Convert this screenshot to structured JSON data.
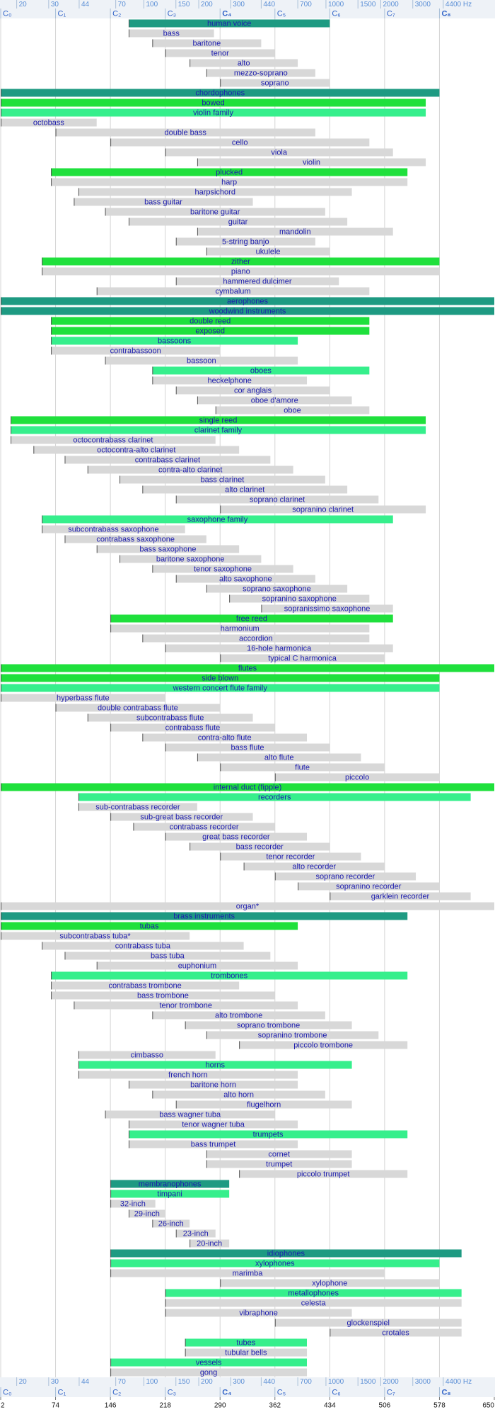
{
  "chart_data": {
    "type": "range_bar",
    "xlim": [
      2,
      650
    ],
    "xticks": [
      2,
      74,
      146,
      218,
      290,
      362,
      434,
      506,
      578,
      650
    ],
    "hz_ticks": [
      {
        "value": 23,
        "label": "20"
      },
      {
        "value": 65,
        "label": "30"
      },
      {
        "value": 105,
        "label": "44"
      },
      {
        "value": 153,
        "label": "70"
      },
      {
        "value": 190,
        "label": "100"
      },
      {
        "value": 232,
        "label": "150"
      },
      {
        "value": 262,
        "label": "200"
      },
      {
        "value": 304,
        "label": "300"
      },
      {
        "value": 344,
        "label": "440"
      },
      {
        "value": 392,
        "label": "700"
      },
      {
        "value": 429,
        "label": "1000"
      },
      {
        "value": 471,
        "label": "1500"
      },
      {
        "value": 501,
        "label": "2000"
      },
      {
        "value": 543,
        "label": "3000"
      },
      {
        "value": 583,
        "label": "4400 Hz"
      }
    ],
    "note_ticks": [
      {
        "value": 2,
        "label": "C₀"
      },
      {
        "value": 74,
        "label": "C₁"
      },
      {
        "value": 146,
        "label": "C₂"
      },
      {
        "value": 218,
        "label": "C₃"
      },
      {
        "value": 290,
        "label": "C₄",
        "bold": true
      },
      {
        "value": 362,
        "label": "C₅"
      },
      {
        "value": 434,
        "label": "C₆"
      },
      {
        "value": 506,
        "label": "C₇"
      },
      {
        "value": 578,
        "label": "C₈",
        "bold": true
      }
    ],
    "grid": true,
    "categories": [
      "human voice",
      "bass",
      "baritone",
      "tenor",
      "alto",
      "mezzo-soprano",
      "soprano",
      "chordophones",
      "bowed",
      "violin family",
      "octobass",
      "double bass",
      "cello",
      "viola",
      "violin",
      "plucked",
      "harp",
      "harpsichord",
      "bass guitar",
      "baritone guitar",
      "guitar",
      "mandolin",
      "5-string banjo",
      "ukulele",
      "zither",
      "piano",
      "hammered dulcimer",
      "cymbalum",
      "aerophones",
      "woodwind instruments",
      "double reed",
      "exposed",
      "bassoons",
      "contrabassoon",
      "bassoon",
      "oboes",
      "heckelphone",
      "cor anglais",
      "oboe d'amore",
      "oboe",
      "single reed",
      "clarinet family",
      "octocontrabass clarinet",
      "octocontra-alto clarinet",
      "contrabass clarinet",
      "contra-alto clarinet",
      "bass clarinet",
      "alto clarinet",
      "soprano clarinet",
      "sopranino clarinet",
      "saxophone family",
      "subcontrabass saxophone",
      "contrabass saxophone",
      "bass saxophone",
      "baritone saxophone",
      "tenor saxophone",
      "alto saxophone",
      "soprano saxophone",
      "sopranino saxophone",
      "sopranissimo saxophone",
      "free reed",
      "harmonium",
      "accordion",
      "16-hole harmonica",
      "typical C harmonica",
      "flutes",
      "side blown",
      "western concert flute family",
      "hyperbass flute",
      "double contrabass flute",
      "subcontrabass flute",
      "contrabass flute",
      "contra-alto flute",
      "bass flute",
      "alto flute",
      "flute",
      "piccolo",
      "internal duct (fipple)",
      "recorders",
      "sub-contrabass recorder",
      "sub-great bass recorder",
      "contrabass recorder",
      "great bass recorder",
      "bass recorder",
      "tenor recorder",
      "alto recorder",
      "soprano recorder",
      "sopranino recorder",
      "garklein recorder",
      "organ*",
      "brass instruments",
      "tubas",
      "subcontrabass tuba*",
      "contrabass tuba",
      "bass tuba",
      "euphonium",
      "trombones",
      "contrabass trombone",
      "bass trombone",
      "tenor trombone",
      "alto trombone",
      "soprano trombone",
      "sopranino trombone",
      "piccolo trombone",
      "cimbasso",
      "horns",
      "french horn",
      "baritone horn",
      "alto horn",
      "flugelhorn",
      "bass wagner tuba",
      "tenor wagner tuba",
      "trumpets",
      "bass trumpet",
      "cornet",
      "trumpet",
      "piccolo trumpet",
      "membranophones",
      "timpani",
      "32-inch",
      "29-inch",
      "26-inch",
      "23-inch",
      "20-inch",
      "idiophones",
      "xylophones",
      "marimba",
      "xylophone",
      "metallophones",
      "celesta",
      "vibraphone",
      "glockenspiel",
      "crotales",
      "tubes",
      "tubular bells",
      "vessels",
      "gong"
    ],
    "starts": [
      170,
      170,
      201,
      218,
      250,
      272,
      290,
      2,
      2,
      2,
      2,
      74,
      146,
      218,
      260,
      68,
      68,
      104,
      98,
      139,
      170,
      260,
      232,
      272,
      56,
      56,
      232,
      128,
      2,
      2,
      68,
      68,
      68,
      68,
      139,
      201,
      201,
      232,
      260,
      284,
      15,
      15,
      15,
      45,
      86,
      116,
      158,
      188,
      232,
      290,
      56,
      56,
      86,
      128,
      158,
      201,
      232,
      272,
      302,
      344,
      146,
      146,
      188,
      218,
      290,
      2,
      2,
      2,
      2,
      74,
      116,
      146,
      188,
      218,
      260,
      290,
      362,
      2,
      104,
      104,
      146,
      176,
      218,
      250,
      290,
      321,
      362,
      392,
      434,
      2,
      2,
      2,
      2,
      56,
      86,
      128,
      68,
      68,
      68,
      98,
      201,
      244,
      272,
      315,
      104,
      104,
      104,
      170,
      201,
      232,
      139,
      170,
      170,
      170,
      272,
      272,
      315,
      146,
      146,
      146,
      170,
      201,
      232,
      250,
      146,
      146,
      146,
      290,
      218,
      218,
      218,
      362,
      434,
      244,
      244,
      146,
      146
    ],
    "ends": [
      434,
      282,
      344,
      362,
      392,
      415,
      434,
      578,
      560,
      560,
      128,
      415,
      486,
      517,
      560,
      536,
      536,
      463,
      333,
      428,
      457,
      517,
      415,
      434,
      578,
      578,
      446,
      486,
      650,
      650,
      486,
      486,
      392,
      290,
      392,
      486,
      404,
      434,
      463,
      486,
      560,
      560,
      284,
      315,
      356,
      386,
      428,
      457,
      498,
      560,
      517,
      244,
      272,
      315,
      344,
      386,
      415,
      457,
      486,
      517,
      517,
      486,
      486,
      517,
      506,
      650,
      578,
      578,
      218,
      290,
      333,
      362,
      404,
      434,
      475,
      506,
      578,
      650,
      619,
      260,
      333,
      362,
      404,
      434,
      475,
      506,
      547,
      578,
      619,
      650,
      536,
      392,
      250,
      321,
      356,
      392,
      536,
      315,
      362,
      392,
      428,
      463,
      498,
      536,
      284,
      463,
      392,
      392,
      428,
      463,
      362,
      392,
      536,
      392,
      463,
      463,
      536,
      302,
      302,
      205,
      218,
      250,
      284,
      302,
      607,
      578,
      506,
      578,
      607,
      607,
      463,
      607,
      607,
      404,
      404,
      404,
      404
    ],
    "colors": [
      "#1e9a82",
      "#d8d8d8",
      "#d8d8d8",
      "#d8d8d8",
      "#d8d8d8",
      "#d8d8d8",
      "#d8d8d8",
      "#1e9a82",
      "#1fe03c",
      "#36ef8c",
      "#d8d8d8",
      "#d8d8d8",
      "#d8d8d8",
      "#d8d8d8",
      "#d8d8d8",
      "#1fe03c",
      "#d8d8d8",
      "#d8d8d8",
      "#d8d8d8",
      "#d8d8d8",
      "#d8d8d8",
      "#d8d8d8",
      "#d8d8d8",
      "#d8d8d8",
      "#1fe03c",
      "#d8d8d8",
      "#d8d8d8",
      "#d8d8d8",
      "#1e9a82",
      "#1e9a82",
      "#1fe03c",
      "#1fe03c",
      "#36ef8c",
      "#d8d8d8",
      "#d8d8d8",
      "#36ef8c",
      "#d8d8d8",
      "#d8d8d8",
      "#d8d8d8",
      "#d8d8d8",
      "#1fe03c",
      "#36ef8c",
      "#d8d8d8",
      "#d8d8d8",
      "#d8d8d8",
      "#d8d8d8",
      "#d8d8d8",
      "#d8d8d8",
      "#d8d8d8",
      "#d8d8d8",
      "#36ef8c",
      "#d8d8d8",
      "#d8d8d8",
      "#d8d8d8",
      "#d8d8d8",
      "#d8d8d8",
      "#d8d8d8",
      "#d8d8d8",
      "#d8d8d8",
      "#d8d8d8",
      "#1fe03c",
      "#d8d8d8",
      "#d8d8d8",
      "#d8d8d8",
      "#d8d8d8",
      "#1fe03c",
      "#1fe03c",
      "#36ef8c",
      "#d8d8d8",
      "#d8d8d8",
      "#d8d8d8",
      "#d8d8d8",
      "#d8d8d8",
      "#d8d8d8",
      "#d8d8d8",
      "#d8d8d8",
      "#d8d8d8",
      "#1fe03c",
      "#36ef8c",
      "#d8d8d8",
      "#d8d8d8",
      "#d8d8d8",
      "#d8d8d8",
      "#d8d8d8",
      "#d8d8d8",
      "#d8d8d8",
      "#d8d8d8",
      "#d8d8d8",
      "#d8d8d8",
      "#d8d8d8",
      "#1e9a82",
      "#1fe03c",
      "#d8d8d8",
      "#d8d8d8",
      "#d8d8d8",
      "#d8d8d8",
      "#36ef8c",
      "#d8d8d8",
      "#d8d8d8",
      "#d8d8d8",
      "#d8d8d8",
      "#d8d8d8",
      "#d8d8d8",
      "#d8d8d8",
      "#d8d8d8",
      "#36ef8c",
      "#d8d8d8",
      "#d8d8d8",
      "#d8d8d8",
      "#d8d8d8",
      "#d8d8d8",
      "#d8d8d8",
      "#36ef8c",
      "#d8d8d8",
      "#d8d8d8",
      "#d8d8d8",
      "#d8d8d8",
      "#1e9a82",
      "#36ef8c",
      "#d8d8d8",
      "#d8d8d8",
      "#d8d8d8",
      "#d8d8d8",
      "#d8d8d8",
      "#1e9a82",
      "#36ef8c",
      "#d8d8d8",
      "#d8d8d8",
      "#36ef8c",
      "#d8d8d8",
      "#d8d8d8",
      "#d8d8d8",
      "#d8d8d8",
      "#36ef8c",
      "#d8d8d8",
      "#36ef8c",
      "#d8d8d8"
    ]
  }
}
